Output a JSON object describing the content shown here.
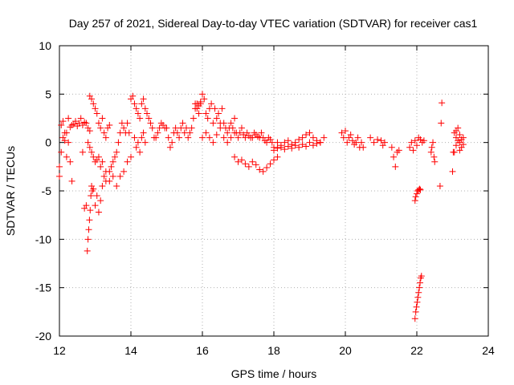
{
  "chart_data": {
    "type": "scatter",
    "title": "Day 257 of 2021, Sidereal Day-to-day VTEC variation (SDTVAR) for receiver cas1",
    "xlabel": "GPS time / hours",
    "ylabel": "SDTVAR / TECUs",
    "xlim": [
      12,
      24
    ],
    "ylim": [
      -20,
      10
    ],
    "xticks": [
      12,
      14,
      16,
      18,
      20,
      22,
      24
    ],
    "xtick_labels": [
      "12",
      "14",
      "16",
      "18",
      "20",
      "22",
      "24"
    ],
    "yticks": [
      -20,
      -15,
      -10,
      -5,
      0,
      5,
      10
    ],
    "ytick_labels": [
      "-20",
      "-15",
      "-10",
      "-5",
      "0",
      "5",
      "10"
    ],
    "grid": true,
    "marker": "plus",
    "color": "#ff0000",
    "series": [
      {
        "name": "SDTVAR",
        "x": [
          12.0,
          12.05,
          12.1,
          12.15,
          12.2,
          12.25,
          12.3,
          12.35,
          12.4,
          12.45,
          12.5,
          12.55,
          12.6,
          12.65,
          12.7,
          12.75,
          12.8,
          12.85,
          12.0,
          12.05,
          12.1,
          12.15,
          12.2,
          12.25,
          12.3,
          12.35,
          12.65,
          12.7,
          12.75,
          12.78,
          12.8,
          12.82,
          12.84,
          12.86,
          12.88,
          12.9,
          12.92,
          12.95,
          13.0,
          13.05,
          13.1,
          13.15,
          13.2,
          13.25,
          13.3,
          12.85,
          12.9,
          12.95,
          13.0,
          13.05,
          13.1,
          13.15,
          13.2,
          13.25,
          13.3,
          13.35,
          13.4,
          12.8,
          12.85,
          12.9,
          12.95,
          13.0,
          13.05,
          13.1,
          13.15,
          13.2,
          13.3,
          13.4,
          13.5,
          13.6,
          13.7,
          13.8,
          13.9,
          14.0,
          13.4,
          13.45,
          13.5,
          13.55,
          13.6,
          13.65,
          13.7,
          13.75,
          13.8,
          13.85,
          13.9,
          13.95,
          14.0,
          14.05,
          14.1,
          14.15,
          14.2,
          14.25,
          14.3,
          14.35,
          14.4,
          14.45,
          14.5,
          14.55,
          14.6,
          14.65,
          14.7,
          14.75,
          14.8,
          14.85,
          14.9,
          14.95,
          14.1,
          14.15,
          14.2,
          14.25,
          14.3,
          14.35,
          14.4,
          15.0,
          15.05,
          15.1,
          15.15,
          15.2,
          15.25,
          15.3,
          15.35,
          15.4,
          15.45,
          15.5,
          15.55,
          15.6,
          15.65,
          15.7,
          15.75,
          15.8,
          15.85,
          15.9,
          15.95,
          15.8,
          15.85,
          15.9,
          15.95,
          16.0,
          16.05,
          16.1,
          16.15,
          16.2,
          16.25,
          16.3,
          16.35,
          16.4,
          16.45,
          16.5,
          16.55,
          16.6,
          16.65,
          16.7,
          16.75,
          16.8,
          16.85,
          16.9,
          16.95,
          16.0,
          16.1,
          16.2,
          16.3,
          16.4,
          16.5,
          16.6,
          16.7,
          16.8,
          16.9,
          17.0,
          17.05,
          17.1,
          17.15,
          17.2,
          17.25,
          17.3,
          17.35,
          17.4,
          17.45,
          17.5,
          17.55,
          17.6,
          17.65,
          17.7,
          17.75,
          17.8,
          17.85,
          17.9,
          17.95,
          16.9,
          17.0,
          17.1,
          17.2,
          17.3,
          17.4,
          17.5,
          17.6,
          17.7,
          17.8,
          17.9,
          18.0,
          18.1,
          18.0,
          18.1,
          18.2,
          18.3,
          18.4,
          18.5,
          18.6,
          18.7,
          18.8,
          18.9,
          19.0,
          19.1,
          19.2,
          19.3,
          19.4,
          18.0,
          18.1,
          18.2,
          18.3,
          18.4,
          18.5,
          18.6,
          18.7,
          18.8,
          18.9,
          19.0,
          19.1,
          19.2,
          19.3,
          19.9,
          19.95,
          20.0,
          20.05,
          20.1,
          20.15,
          20.2,
          20.25,
          20.3,
          20.35,
          20.4,
          20.45,
          20.5,
          20.7,
          20.8,
          20.9,
          21.0,
          21.05,
          21.1,
          21.3,
          21.35,
          21.4,
          21.45,
          21.5,
          21.8,
          21.85,
          21.9,
          21.95,
          22.0,
          21.95,
          21.97,
          22.0,
          22.02,
          22.05,
          22.08,
          22.1,
          21.95,
          21.97,
          21.99,
          22.01,
          22.03,
          22.05,
          22.07,
          22.09,
          22.11,
          22.13,
          22.05,
          22.1,
          22.15,
          22.2,
          22.4,
          22.42,
          22.45,
          22.48,
          22.5,
          22.7,
          22.68,
          22.65,
          23.0,
          23.02,
          23.05,
          23.1,
          23.15,
          23.2,
          23.25,
          23.3,
          23.05,
          23.1,
          23.15,
          23.2,
          23.25,
          23.3,
          23.1,
          23.2
        ],
        "y": [
          -2.5,
          1.8,
          2.2,
          1.0,
          -1.5,
          2.5,
          1.6,
          1.8,
          1.9,
          2.2,
          1.7,
          2.0,
          2.5,
          1.8,
          2.1,
          2.0,
          1.5,
          1.2,
          -3.5,
          -1.0,
          0.5,
          0.2,
          1.0,
          0.0,
          -2.0,
          -4.0,
          -1.0,
          -6.8,
          -6.5,
          -11.2,
          -10.0,
          -9.0,
          -8.0,
          -7.0,
          -5.5,
          -4.5,
          -5.0,
          -4.8,
          -6.5,
          -5.5,
          -7.2,
          -6.0,
          -4.5,
          -3.5,
          -4.0,
          4.8,
          4.5,
          4.0,
          3.5,
          3.0,
          2.0,
          1.5,
          2.5,
          1.0,
          0.5,
          1.5,
          1.8,
          0.0,
          -0.5,
          -1.0,
          -1.5,
          -2.0,
          -1.8,
          -1.5,
          -2.5,
          -2.0,
          -3.0,
          -4.0,
          -3.5,
          -4.5,
          -3.5,
          -3.0,
          -2.0,
          -1.5,
          -3.0,
          -2.5,
          -2.0,
          -1.5,
          -1.0,
          0.0,
          1.0,
          2.0,
          1.5,
          1.0,
          2.0,
          1.0,
          4.5,
          4.8,
          4.0,
          3.5,
          3.0,
          2.5,
          4.0,
          4.5,
          3.5,
          3.0,
          2.5,
          2.0,
          1.5,
          0.5,
          0.5,
          1.0,
          1.5,
          2.0,
          1.8,
          1.5,
          0.5,
          -0.5,
          0.0,
          -1.0,
          0.5,
          1.0,
          0.0,
          1.5,
          0.5,
          -0.5,
          0.0,
          1.0,
          1.5,
          1.0,
          0.5,
          1.5,
          2.0,
          1.0,
          1.5,
          0.5,
          1.0,
          1.5,
          2.5,
          4.0,
          3.5,
          3.0,
          4.0,
          3.5,
          4.0,
          3.8,
          4.2,
          5.0,
          4.5,
          3.0,
          2.5,
          3.5,
          4.0,
          2.0,
          3.5,
          2.5,
          3.0,
          2.0,
          3.5,
          2.0,
          1.5,
          1.0,
          1.5,
          2.0,
          1.5,
          2.5,
          1.0,
          0.5,
          1.0,
          0.5,
          0.0,
          0.8,
          1.5,
          0.5,
          0.0,
          0.5,
          1.0,
          0.5,
          1.0,
          1.5,
          0.8,
          0.5,
          1.0,
          0.7,
          0.5,
          0.5,
          1.0,
          0.8,
          0.6,
          0.5,
          1.0,
          0.5,
          0.2,
          0.0,
          0.5,
          0.3,
          0.0,
          -1.5,
          -2.0,
          -1.8,
          -2.2,
          -2.5,
          -2.0,
          -2.3,
          -2.8,
          -3.0,
          -2.6,
          -2.2,
          -1.8,
          -1.5,
          -0.5,
          0.0,
          -0.3,
          0.0,
          0.2,
          -0.2,
          0.0,
          0.3,
          0.5,
          0.8,
          1.0,
          0.5,
          0.2,
          0.0,
          0.5,
          -0.8,
          -0.6,
          -0.5,
          -0.7,
          -0.4,
          -0.6,
          -0.3,
          -0.5,
          -0.2,
          -0.4,
          0.0,
          -0.3,
          -0.1,
          0.0,
          1.0,
          0.5,
          1.2,
          0.0,
          0.5,
          0.8,
          0.2,
          -0.2,
          0.0,
          0.5,
          -0.5,
          0.0,
          -0.5,
          0.5,
          0.0,
          0.3,
          0.2,
          -0.3,
          0.0,
          -0.5,
          -1.5,
          -2.5,
          -1.0,
          -0.8,
          -0.5,
          0.0,
          -0.8,
          0.2,
          -0.3,
          -6.0,
          -5.6,
          -5.3,
          -5.0,
          -4.9,
          -4.8,
          -4.9,
          -18.2,
          -17.5,
          -17.0,
          -16.5,
          -16.0,
          -15.5,
          -15.0,
          -14.5,
          -14.0,
          -13.8,
          0.5,
          0.3,
          0.0,
          0.2,
          -1.0,
          -0.5,
          0.0,
          -1.5,
          -2.0,
          4.1,
          2.0,
          -4.5,
          -3.0,
          -1.0,
          1.0,
          0.5,
          1.5,
          0.0,
          -0.5,
          0.5,
          -1.0,
          -0.3,
          0.2,
          -0.8,
          0.3,
          -0.2,
          1.2,
          0.8
        ]
      }
    ]
  }
}
